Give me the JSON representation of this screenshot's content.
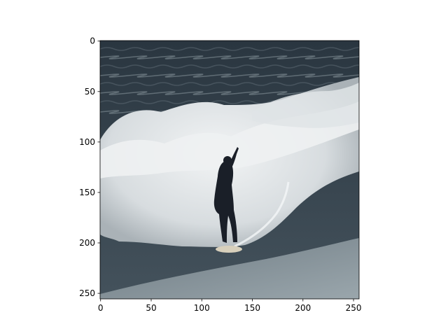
{
  "figure": {
    "image_description": "Surfer in a dark wetsuit riding a small board on a river/standing wave, with white foaming whitewater behind and dark choppy water above.",
    "palette": {
      "deep_water": "#2c3a45",
      "mid_water": "#4c5c66",
      "foam": "#e8ecee",
      "shadow_foam": "#b8c0c4",
      "calm_water": "#8a979e",
      "wetsuit": "#1a1f28",
      "board": "#d8d0bc"
    }
  },
  "chart_data": {
    "type": "image",
    "x_ticks": [
      0,
      50,
      100,
      150,
      200,
      250
    ],
    "y_ticks": [
      0,
      50,
      100,
      150,
      200,
      250
    ],
    "xlim": [
      -0.5,
      255.5
    ],
    "ylim": [
      255.5,
      -0.5
    ],
    "y_inverted": true,
    "title": "",
    "xlabel": "",
    "ylabel": ""
  }
}
